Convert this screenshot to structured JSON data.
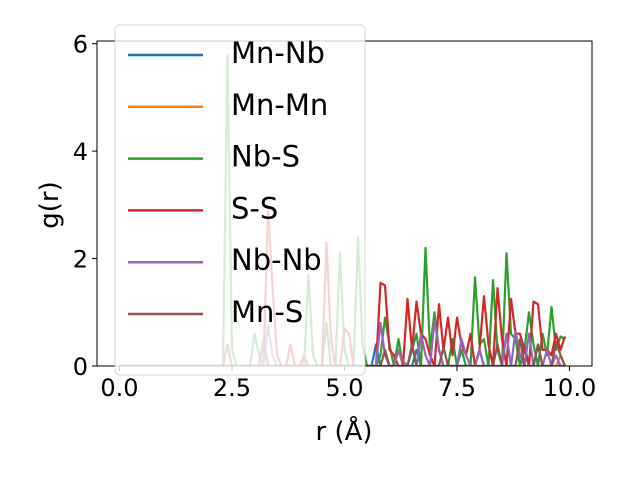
{
  "chart_data": {
    "type": "line",
    "xlabel": "r (Å)",
    "ylabel": "g(r)",
    "x": [
      0,
      0.1,
      0.2,
      0.3,
      0.4,
      0.5,
      0.6,
      0.7,
      0.8,
      0.9,
      1,
      1.1,
      1.2,
      1.3,
      1.4,
      1.5,
      1.6,
      1.7,
      1.8,
      1.9,
      2,
      2.1,
      2.2,
      2.3,
      2.4,
      2.5,
      2.6,
      2.7,
      2.8,
      2.9,
      3,
      3.1,
      3.2,
      3.3,
      3.4,
      3.5,
      3.6,
      3.7,
      3.8,
      3.9,
      4,
      4.1,
      4.2,
      4.3,
      4.4,
      4.5,
      4.6,
      4.7,
      4.8,
      4.9,
      5,
      5.1,
      5.2,
      5.3,
      5.4,
      5.5,
      5.6,
      5.7,
      5.8,
      5.9,
      6,
      6.1,
      6.2,
      6.3,
      6.4,
      6.5,
      6.6,
      6.7,
      6.8,
      6.9,
      7,
      7.1,
      7.2,
      7.3,
      7.4,
      7.5,
      7.6,
      7.7,
      7.8,
      7.9,
      8,
      8.1,
      8.2,
      8.3,
      8.4,
      8.5,
      8.6,
      8.7,
      8.8,
      8.9,
      9,
      9.1,
      9.2,
      9.3,
      9.4,
      9.5,
      9.6,
      9.7,
      9.8,
      9.9
    ],
    "series": [
      {
        "name": "Mn-Nb",
        "color": "#1f77b4",
        "values": [
          0,
          0,
          0,
          0,
          0,
          0,
          0,
          0,
          0,
          0,
          0,
          0,
          0,
          0,
          0,
          0,
          0,
          0,
          0,
          0,
          0,
          0,
          0,
          0,
          0,
          0,
          0,
          0,
          0,
          0,
          0,
          0,
          0.5,
          0,
          0,
          0,
          0,
          0,
          0,
          0,
          0,
          0,
          0,
          0,
          0,
          0,
          0,
          0,
          0,
          0,
          0,
          0,
          0,
          0,
          0,
          0,
          0,
          0.4,
          0,
          0,
          0,
          0,
          0,
          0,
          0,
          0,
          0.3,
          0,
          0,
          0,
          0,
          0,
          0,
          0,
          0,
          0,
          0,
          0,
          0,
          0,
          0.3,
          0,
          0,
          0,
          0,
          0,
          0,
          0,
          0,
          0,
          0.4,
          0,
          0,
          0,
          0,
          0,
          0,
          0,
          0,
          0
        ]
      },
      {
        "name": "Mn-Mn",
        "color": "#ff7f0e",
        "values": [
          0,
          0,
          0,
          0,
          0,
          0,
          0,
          0,
          0,
          0,
          0,
          0,
          0,
          0,
          0,
          0,
          0,
          0,
          0,
          0,
          0,
          0,
          0,
          0,
          0,
          0,
          0,
          0,
          0,
          0,
          0,
          0,
          0,
          0,
          0,
          0,
          0,
          0,
          0,
          0,
          0,
          0,
          0,
          0,
          0,
          0,
          0,
          0,
          0,
          0,
          0,
          0,
          0,
          0,
          0,
          0,
          0,
          0,
          0,
          0,
          0,
          0,
          0.3,
          0,
          0,
          0,
          0,
          0,
          0,
          0,
          0,
          0,
          0,
          0,
          0,
          0,
          0,
          0,
          0,
          0,
          0,
          0,
          0,
          0,
          0,
          0,
          0,
          0,
          0,
          0,
          0,
          0,
          0,
          0,
          0,
          0,
          0,
          0,
          0.2,
          0
        ]
      },
      {
        "name": "Nb-S",
        "color": "#2ca02c",
        "values": [
          0,
          0,
          0,
          0,
          0,
          0,
          0,
          0,
          0,
          0,
          0,
          0,
          0,
          0,
          0,
          0,
          0,
          0,
          0,
          0,
          0,
          0,
          0,
          0,
          5.78,
          0.3,
          0,
          0,
          0,
          0,
          0.6,
          0.2,
          0,
          0,
          0,
          0,
          0,
          0,
          0,
          0,
          0,
          0,
          1.7,
          0.2,
          0,
          0,
          0.8,
          0,
          0,
          2.1,
          0.3,
          0,
          0,
          2.4,
          0.4,
          0,
          0,
          0,
          0.2,
          0.9,
          0.4,
          0,
          0.5,
          0,
          0,
          0.3,
          0.6,
          0,
          2.2,
          0.3,
          1.0,
          0.3,
          0,
          0,
          0.5,
          0,
          0.3,
          0,
          0,
          1.65,
          0.4,
          0.5,
          0,
          1.6,
          0.3,
          0,
          2.1,
          0.6,
          0.5,
          0,
          0.3,
          1.0,
          0.4,
          0,
          0.6,
          0.2,
          1.1,
          0.3,
          0.55,
          0.5
        ]
      },
      {
        "name": "S-S",
        "color": "#d62728",
        "values": [
          0,
          0,
          0,
          0,
          0,
          0,
          0,
          0,
          0,
          0,
          0,
          0,
          0,
          0,
          0,
          0,
          0,
          0,
          0,
          0,
          0,
          0,
          0,
          0,
          0,
          0,
          0,
          0,
          0,
          0,
          0,
          0,
          0,
          2.9,
          1.5,
          0.2,
          0,
          0,
          0.4,
          0,
          0,
          0.2,
          0,
          0,
          0,
          0,
          2.3,
          0.5,
          0,
          0,
          0.7,
          0.6,
          0,
          0,
          0,
          0,
          0,
          0,
          1.55,
          1.5,
          0.3,
          0.2,
          0,
          0,
          1.25,
          0.3,
          1.2,
          0.6,
          0.5,
          0.2,
          0,
          1.15,
          0.3,
          0.9,
          0.2,
          0.9,
          0.4,
          0.2,
          0.6,
          0,
          0.3,
          1.3,
          0.4,
          0,
          1.45,
          0.5,
          0,
          1.25,
          0.6,
          0.6,
          0.3,
          0,
          1.2,
          1.15,
          0.3,
          0.3,
          0.2,
          0.6,
          0.3,
          0.55
        ]
      },
      {
        "name": "Nb-Nb",
        "color": "#9467bd",
        "values": [
          0,
          0,
          0,
          0,
          0,
          0,
          0,
          0,
          0,
          0,
          0,
          0,
          0,
          0,
          0,
          0,
          0,
          0,
          0,
          0,
          0,
          0,
          0,
          0,
          0,
          0,
          0,
          0,
          0,
          0,
          0,
          0,
          0,
          0.75,
          0.2,
          0,
          0,
          0,
          0,
          0,
          0,
          0,
          0,
          0,
          0,
          0,
          0,
          0,
          0,
          0,
          0,
          0,
          0,
          0,
          0,
          0,
          0,
          0,
          0.8,
          0.2,
          0,
          0,
          0.3,
          0.1,
          0,
          0,
          0,
          0.6,
          0.2,
          0,
          0.85,
          0.3,
          0,
          0,
          0,
          0,
          0.5,
          0.2,
          0,
          0,
          0.3,
          0,
          0,
          0,
          0,
          0,
          0.6,
          0,
          0.65,
          0.2,
          0,
          0.6,
          0,
          0.4,
          0,
          0.3,
          0,
          0.2,
          0,
          0
        ]
      },
      {
        "name": "Mn-S",
        "color": "#8c564b",
        "values": [
          0,
          0,
          0,
          0,
          0,
          0,
          0,
          0,
          0,
          0,
          0,
          0,
          0,
          0,
          0,
          0,
          0,
          0,
          0,
          0,
          0,
          0,
          0,
          0,
          0.4,
          0,
          0,
          0,
          0,
          0,
          0,
          0,
          0.5,
          0,
          0,
          0,
          0,
          0,
          0,
          0,
          0,
          0,
          0,
          0,
          0,
          0,
          0,
          0,
          0,
          0,
          0,
          0,
          0,
          0,
          0,
          0,
          0,
          0,
          0,
          0.3,
          0,
          0,
          0,
          0,
          0,
          0.4,
          0,
          0,
          0,
          0,
          0,
          0,
          0.35,
          0,
          0,
          0,
          0,
          0,
          0,
          0,
          0,
          0,
          0,
          0,
          0.4,
          0,
          0,
          0,
          0,
          0.5,
          0,
          0,
          0,
          0.4,
          0,
          0,
          0,
          0.45,
          0.2,
          0
        ]
      }
    ],
    "xlim": [
      -0.5,
      10.5
    ],
    "ylim": [
      0,
      6.05
    ],
    "xticks": [
      {
        "value": 0,
        "label": "0.0"
      },
      2.5,
      {
        "value": 5,
        "label": "5.0"
      },
      7.5,
      {
        "value": 10,
        "label": "10.0"
      }
    ],
    "yticks": [
      0,
      2,
      4,
      6
    ],
    "legend": "upper left"
  }
}
